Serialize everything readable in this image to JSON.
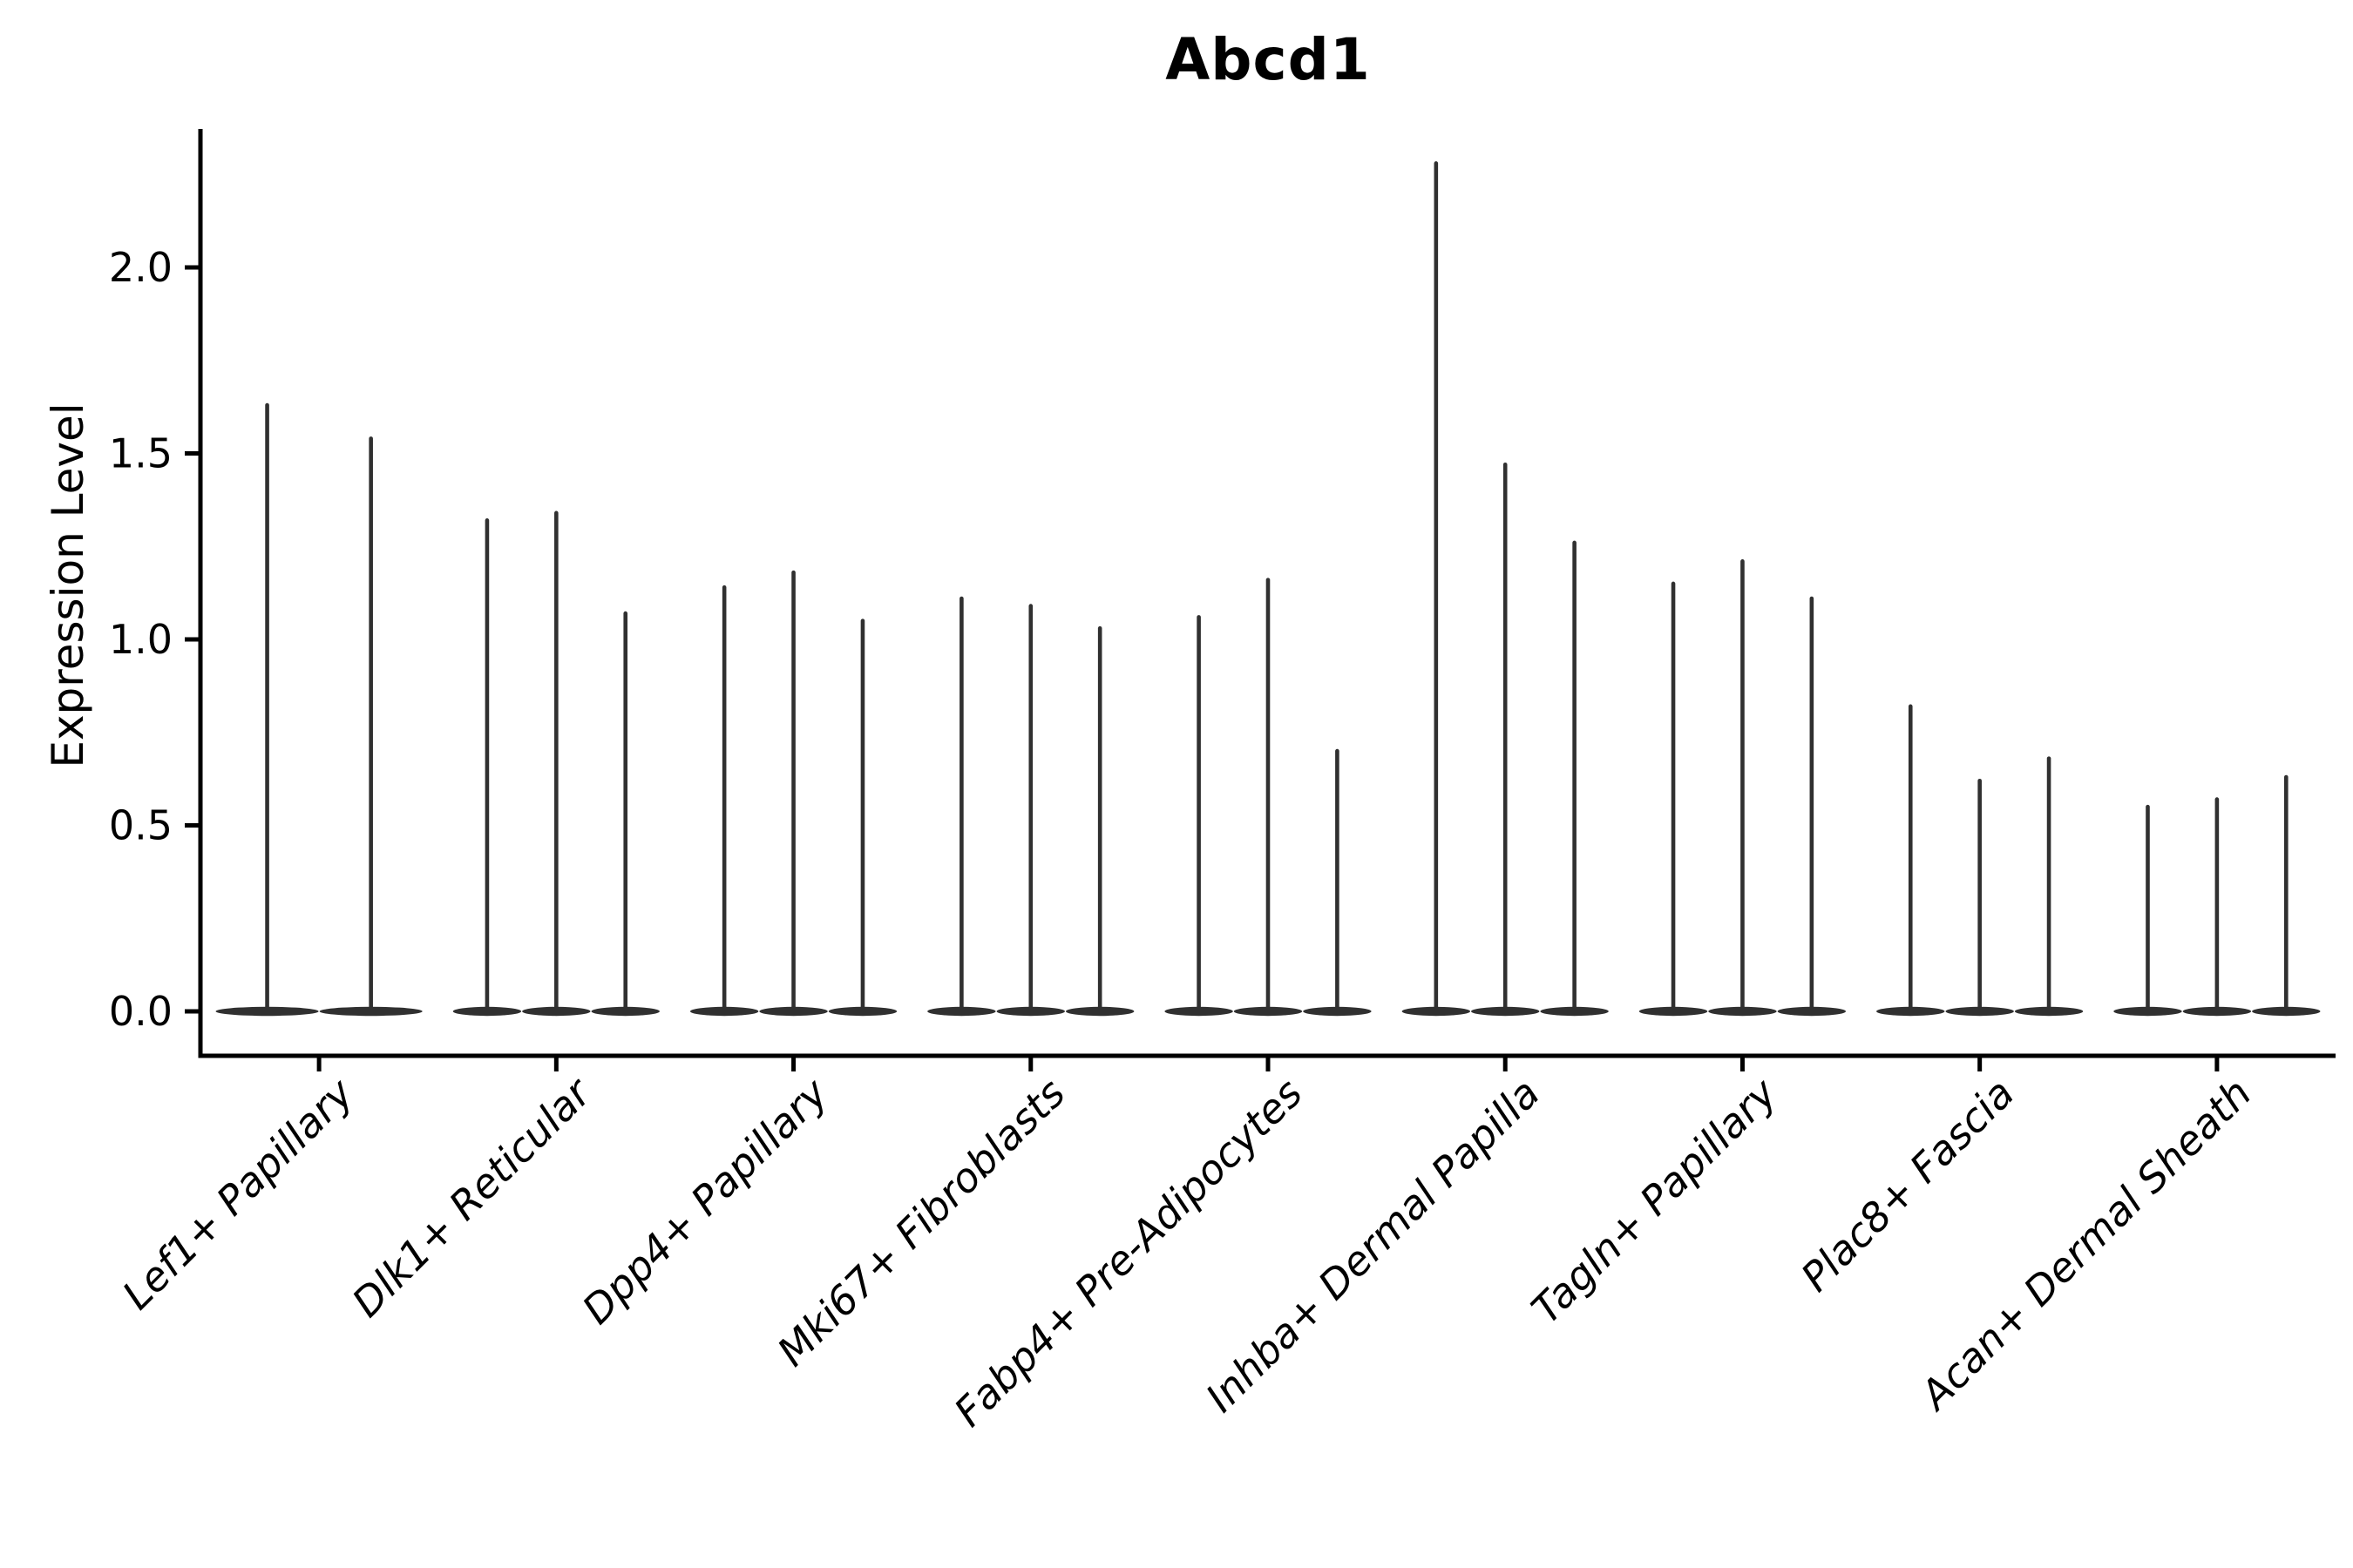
{
  "figure": {
    "background_color": "#ffffff",
    "axis_color": "#000000"
  },
  "chart_data": {
    "type": "violin",
    "title": "Abcd1",
    "ylabel": "Expression Level",
    "xlabel": "",
    "legend_position": "none",
    "grid": false,
    "violin_color": "#303030",
    "baseline_value": 0.0,
    "ylim": [
      -0.12,
      2.37
    ],
    "y_ticks": [
      {
        "value": 0.0,
        "label": "0.0"
      },
      {
        "value": 0.5,
        "label": "0.5"
      },
      {
        "value": 1.0,
        "label": "1.0"
      },
      {
        "value": 1.5,
        "label": "1.5"
      },
      {
        "value": 2.0,
        "label": "2.0"
      }
    ],
    "groups": [
      {
        "label": "Lef1+ Papillary",
        "violin_maxima": [
          1.63,
          1.54
        ]
      },
      {
        "label": "Dlk1+ Reticular",
        "violin_maxima": [
          1.32,
          1.34,
          1.07
        ]
      },
      {
        "label": "Dpp4+ Papillary",
        "violin_maxima": [
          1.14,
          1.18,
          1.05
        ]
      },
      {
        "label": "Mki67+ Fibroblasts",
        "violin_maxima": [
          1.11,
          1.09,
          1.03
        ]
      },
      {
        "label": "Fabp4+ Pre-Adipocytes",
        "violin_maxima": [
          1.06,
          1.16,
          0.7
        ]
      },
      {
        "label": "Inhba+ Dermal Papilla",
        "violin_maxima": [
          2.28,
          1.47,
          1.26
        ]
      },
      {
        "label": "Tagln+ Papillary",
        "violin_maxima": [
          1.15,
          1.21,
          1.11
        ]
      },
      {
        "label": "Plac8+ Fascia",
        "violin_maxima": [
          0.82,
          0.62,
          0.68
        ]
      },
      {
        "label": "Acan+ Dermal Sheath",
        "violin_maxima": [
          0.55,
          0.57,
          0.63
        ]
      }
    ]
  }
}
